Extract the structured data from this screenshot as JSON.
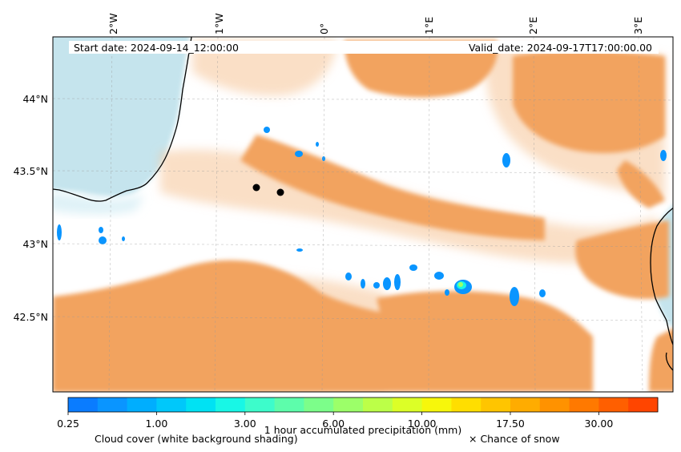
{
  "map": {
    "start_date": "Start date: 2024-09-14_12:00:00",
    "valid_date": "Valid_date: 2024-09-17T17:00:00.00",
    "lon_ticks": [
      "2°W",
      "1°W",
      "0°",
      "1°E",
      "2°E",
      "3°E"
    ],
    "lat_ticks": [
      "44°N",
      "43.5°N",
      "43°N",
      "42.5°N"
    ],
    "markers": [
      {
        "lon": -0.81,
        "lat": 43.38
      },
      {
        "lon": -0.58,
        "lat": 43.35
      }
    ],
    "colors": {
      "cloud": "#f2a35e",
      "sea": "#add8e6",
      "coastline": "#000000",
      "marker": "#000000"
    }
  },
  "colorbar": {
    "title": "1 hour accumulated precipitation (mm)",
    "tick_labels": [
      "0.25",
      "1.00",
      "3.00",
      "6.00",
      "10.00",
      "17.50",
      "30.00"
    ],
    "colors": [
      "#0a7cff",
      "#0a95ff",
      "#00aefe",
      "#00c8fa",
      "#00e2f3",
      "#18f7e6",
      "#3dfccb",
      "#5dfdab",
      "#7cfe8a",
      "#9cff69",
      "#bcff48",
      "#dcff27",
      "#f7f70b",
      "#ffde00",
      "#ffc500",
      "#ffac00",
      "#ff9200",
      "#ff7900",
      "#ff5f00",
      "#ff4500"
    ]
  },
  "legend": {
    "cloud_label": "Cloud cover (white background shading)",
    "snow_label": "× Chance of snow"
  }
}
